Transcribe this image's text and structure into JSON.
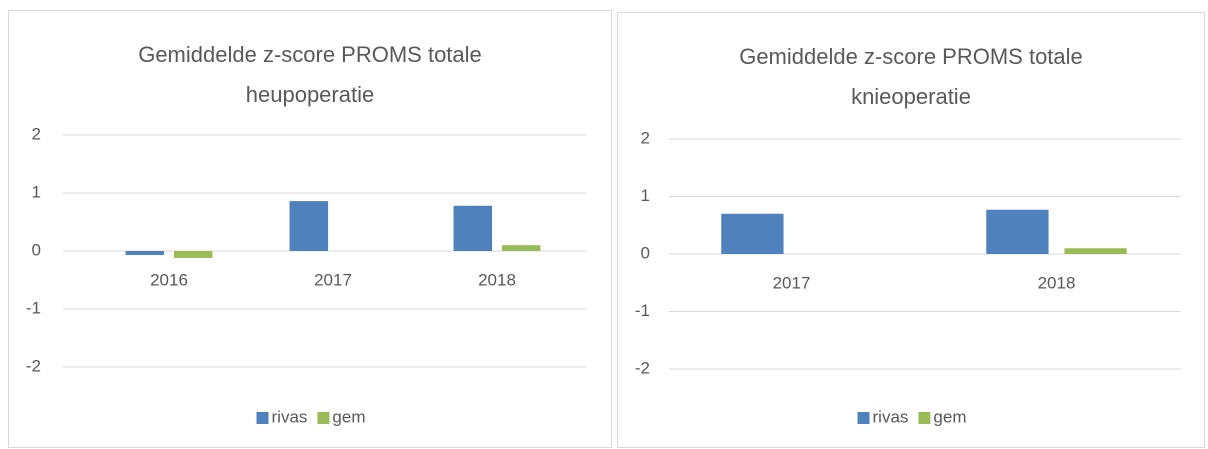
{
  "chart_data": [
    {
      "type": "bar",
      "title": "Gemiddelde z-score PROMS totale heupoperatie",
      "categories": [
        "2016",
        "2017",
        "2018"
      ],
      "series": [
        {
          "name": "rivas",
          "color": "#4f81bd",
          "values": [
            -0.07,
            0.86,
            0.78
          ]
        },
        {
          "name": "gem",
          "color": "#9bbb59",
          "values": [
            -0.12,
            0,
            0.1
          ]
        }
      ],
      "ylim": [
        -2,
        2
      ],
      "yticks": [
        -2,
        -1,
        0,
        1,
        2
      ],
      "grid": true,
      "legend": "bottom"
    },
    {
      "type": "bar",
      "title": "Gemiddelde z-score PROMS totale knieoperatie",
      "categories": [
        "2017",
        "2018"
      ],
      "series": [
        {
          "name": "rivas",
          "color": "#4f81bd",
          "values": [
            0.7,
            0.77
          ]
        },
        {
          "name": "gem",
          "color": "#9bbb59",
          "values": [
            0,
            0.1
          ]
        }
      ],
      "ylim": [
        -2,
        2
      ],
      "yticks": [
        -2,
        -1,
        0,
        1,
        2
      ],
      "grid": true,
      "legend": "bottom"
    }
  ]
}
